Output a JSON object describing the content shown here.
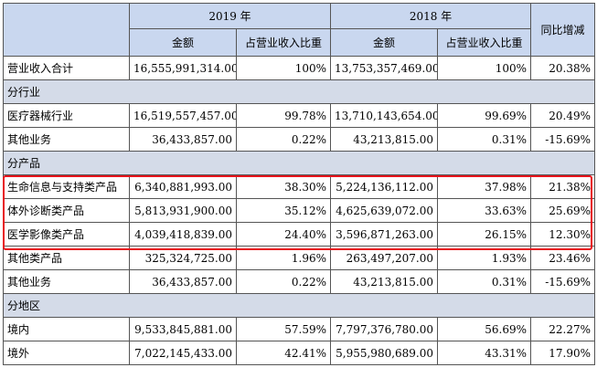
{
  "header": {
    "year_2019": "2019 年",
    "year_2018": "2018 年",
    "yoy": "同比增减",
    "amount": "金额",
    "share": "占营业收入比重"
  },
  "rows": [
    {
      "label": "营业收入合计",
      "a2019": "16,555,991,314.00",
      "s2019": "100%",
      "a2018": "13,753,357,469.00",
      "s2018": "100%",
      "yoy": "20.38%"
    },
    {
      "section": "分行业"
    },
    {
      "label": "医疗器械行业",
      "a2019": "16,519,557,457.00",
      "s2019": "99.78%",
      "a2018": "13,710,143,654.00",
      "s2018": "99.69%",
      "yoy": "20.49%"
    },
    {
      "label": "其他业务",
      "a2019": "36,433,857.00",
      "s2019": "0.22%",
      "a2018": "43,213,815.00",
      "s2018": "0.31%",
      "yoy": "-15.69%"
    },
    {
      "section": "分产品"
    },
    {
      "label": "生命信息与支持类产品",
      "a2019": "6,340,881,993.00",
      "s2019": "38.30%",
      "a2018": "5,224,136,112.00",
      "s2018": "37.98%",
      "yoy": "21.38%"
    },
    {
      "label": "体外诊断类产品",
      "a2019": "5,813,931,900.00",
      "s2019": "35.12%",
      "a2018": "4,625,639,072.00",
      "s2018": "33.63%",
      "yoy": "25.69%"
    },
    {
      "label": "医学影像类产品",
      "a2019": "4,039,418,839.00",
      "s2019": "24.40%",
      "a2018": "3,596,871,263.00",
      "s2018": "26.15%",
      "yoy": "12.30%"
    },
    {
      "label": "其他类产品",
      "a2019": "325,324,725.00",
      "s2019": "1.96%",
      "a2018": "263,497,207.00",
      "s2018": "1.93%",
      "yoy": "23.46%"
    },
    {
      "label": "其他业务",
      "a2019": "36,433,857.00",
      "s2019": "0.22%",
      "a2018": "43,213,815.00",
      "s2018": "0.31%",
      "yoy": "-15.69%"
    },
    {
      "section": "分地区"
    },
    {
      "label": "境内",
      "a2019": "9,533,845,881.00",
      "s2019": "57.59%",
      "a2018": "7,797,376,780.00",
      "s2018": "56.69%",
      "yoy": "22.27%"
    },
    {
      "label": "境外",
      "a2019": "7,022,145,433.00",
      "s2019": "42.41%",
      "a2018": "5,955,980,689.00",
      "s2018": "43.31%",
      "yoy": "17.90%"
    }
  ],
  "highlight_color": "#e8141c"
}
